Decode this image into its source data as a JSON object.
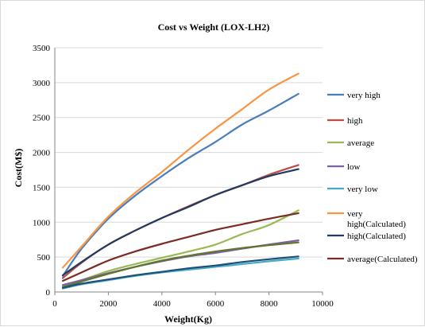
{
  "chart_data": {
    "type": "line",
    "title": "Cost vs Weight (LOX-LH2)",
    "xlabel": "Weight(Kg)",
    "ylabel": "Cost(M$)",
    "xlim": [
      0,
      10000
    ],
    "ylim": [
      0,
      3500
    ],
    "xticks": [
      0,
      2000,
      4000,
      6000,
      8000,
      10000
    ],
    "yticks": [
      0,
      500,
      1000,
      1500,
      2000,
      2500,
      3000,
      3500
    ],
    "grid": "horizontal",
    "legend_position": "right",
    "series": [
      {
        "name": "very high",
        "color": "#4a7ebb",
        "x": [
          300,
          1000,
          2000,
          3000,
          4000,
          5000,
          6000,
          7000,
          8000,
          9100
        ],
        "y": [
          230,
          620,
          1050,
          1380,
          1660,
          1920,
          2150,
          2400,
          2600,
          2840
        ]
      },
      {
        "name": "high",
        "color": "#be4b48",
        "x": [
          300,
          1000,
          2000,
          3000,
          4000,
          5000,
          6000,
          7000,
          8000,
          9100
        ],
        "y": [
          200,
          420,
          680,
          880,
          1060,
          1230,
          1390,
          1530,
          1680,
          1820
        ]
      },
      {
        "name": "average",
        "color": "#98b954",
        "x": [
          300,
          1000,
          2000,
          3000,
          4000,
          5000,
          6000,
          7000,
          8000,
          9100
        ],
        "y": [
          90,
          170,
          300,
          400,
          490,
          580,
          680,
          830,
          960,
          1170
        ]
      },
      {
        "name": "low",
        "color": "#7d60a0",
        "x": [
          300,
          1000,
          2000,
          3000,
          4000,
          5000,
          6000,
          7000,
          8000,
          9100
        ],
        "y": [
          100,
          170,
          270,
          360,
          440,
          510,
          560,
          620,
          680,
          740
        ]
      },
      {
        "name": "very low",
        "color": "#46aac5",
        "x": [
          300,
          1000,
          2000,
          3000,
          4000,
          5000,
          6000,
          7000,
          8000,
          9100
        ],
        "y": [
          50,
          110,
          170,
          230,
          280,
          320,
          360,
          400,
          440,
          480
        ]
      },
      {
        "name": "very high(Calculated)",
        "color": "#f79646",
        "x": [
          300,
          1000,
          2000,
          3000,
          4000,
          5000,
          6000,
          7000,
          8000,
          9100
        ],
        "y": [
          350,
          650,
          1080,
          1420,
          1720,
          2040,
          2340,
          2620,
          2900,
          3130
        ]
      },
      {
        "name": "high(Calculated)",
        "color": "#1f3b5e",
        "x": [
          300,
          1000,
          2000,
          3000,
          4000,
          5000,
          6000,
          7000,
          8000,
          9100
        ],
        "y": [
          240,
          430,
          680,
          880,
          1060,
          1220,
          1390,
          1530,
          1660,
          1760
        ]
      },
      {
        "name": "average(Calculated)",
        "color": "#7b2c26",
        "x": [
          300,
          1000,
          2000,
          3000,
          4000,
          5000,
          6000,
          7000,
          8000,
          9100
        ],
        "y": [
          160,
          280,
          450,
          580,
          690,
          790,
          890,
          970,
          1050,
          1130
        ]
      },
      {
        "name": "",
        "color": "#5f7530",
        "x": [
          300,
          1000,
          2000,
          3000,
          4000,
          5000,
          6000,
          7000,
          8000,
          9100
        ],
        "y": [
          70,
          150,
          260,
          360,
          450,
          520,
          580,
          630,
          670,
          710
        ]
      },
      {
        "name": "",
        "color": "#1f4e79",
        "x": [
          300,
          1000,
          2000,
          3000,
          4000,
          5000,
          6000,
          7000,
          8000,
          9100
        ],
        "y": [
          60,
          120,
          180,
          240,
          290,
          340,
          380,
          430,
          470,
          510
        ]
      }
    ]
  }
}
